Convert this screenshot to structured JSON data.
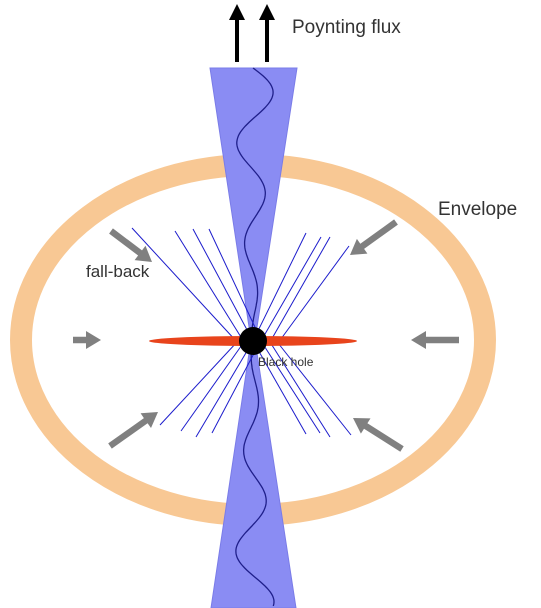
{
  "labels": {
    "poynting_flux": "Poynting flux",
    "envelope": "Envelope",
    "fall_back": "fall-back",
    "black_hole": "Black hole"
  },
  "colors": {
    "envelope": "#f8c894",
    "jet": "#8a8cf3",
    "jet_edge": "#7a7ce8",
    "wave": "#1f1f8a",
    "field_lines": "#1c1ccc",
    "disk": "#e8441c",
    "black_hole": "#000000",
    "inflow_arrows": "#808080",
    "flux_arrows": "#000000",
    "text": "#333333"
  }
}
